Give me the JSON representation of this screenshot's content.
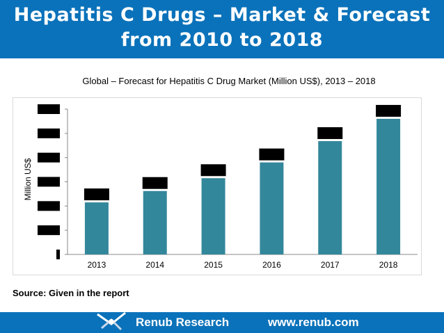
{
  "header": {
    "title_line1": "Hepatitis C Drugs – Market & Forecast",
    "title_line2": "from 2010 to 2018"
  },
  "source_note": "Source: Given in the report",
  "footer": {
    "brand": "Renub Research",
    "url": "www.renub.com"
  },
  "colors": {
    "header_bg": "#0a72ba",
    "bar": "#33879b",
    "redaction": "#000000"
  },
  "chart_data": {
    "type": "bar",
    "title": "Global – Forecast for Hepatitis C Drug Market (Million US$), 2013 – 2018",
    "xlabel": "",
    "ylabel": "Million US$",
    "categories": [
      "2013",
      "2014",
      "2015",
      "2016",
      "2017",
      "2018"
    ],
    "values": [
      2.15,
      2.62,
      3.15,
      3.8,
      4.68,
      5.6
    ],
    "ylim": [
      0,
      6
    ],
    "yticks": [
      0,
      1,
      2,
      3,
      4,
      5,
      6
    ],
    "tick_labels_redacted": true,
    "data_labels_redacted": true,
    "grid": false,
    "legend": "none"
  }
}
